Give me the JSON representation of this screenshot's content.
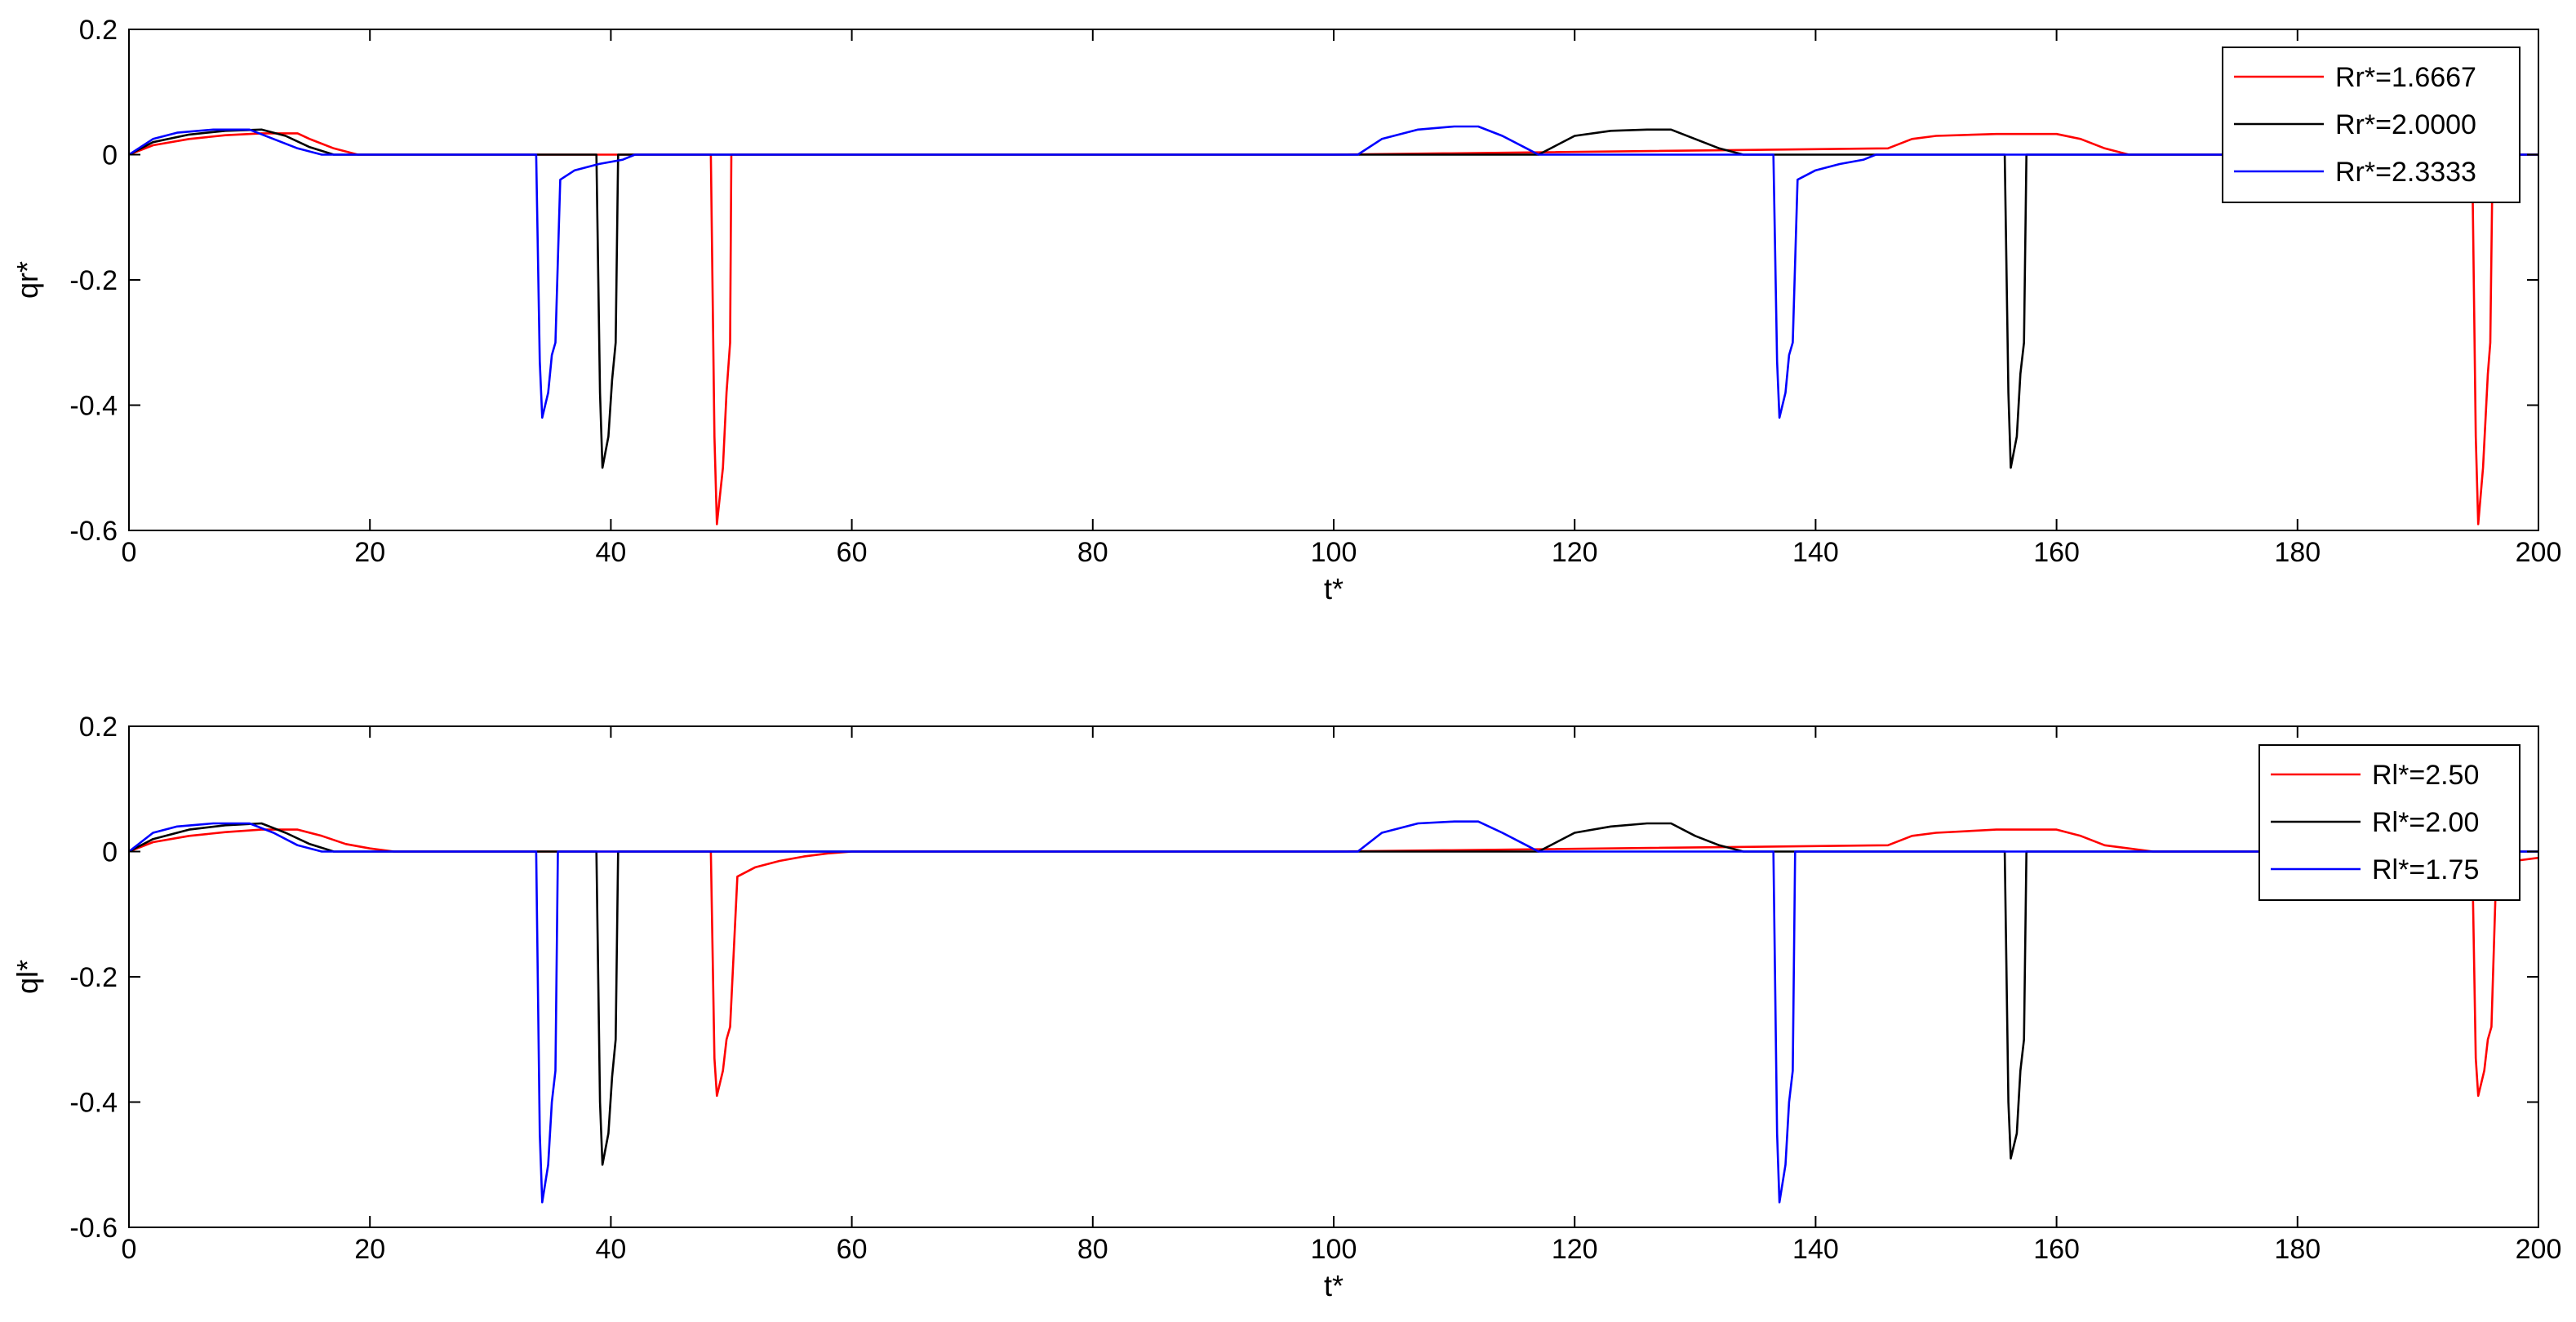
{
  "chart_data": [
    {
      "type": "line",
      "xlabel": "t*",
      "ylabel": "qr*",
      "xlim": [
        0,
        200
      ],
      "ylim": [
        -0.6,
        0.2
      ],
      "xticks": [
        "0",
        "20",
        "40",
        "60",
        "80",
        "100",
        "120",
        "140",
        "160",
        "180",
        "200"
      ],
      "yticks": [
        "0.2",
        "0",
        "-0.2",
        "-0.4",
        "-0.6"
      ],
      "grid": false,
      "legend_position": "top-right",
      "series": [
        {
          "name": "Rr*=1.6667",
          "color": "#ff0000",
          "x": [
            0,
            2,
            5,
            8,
            11,
            14,
            15,
            17,
            19,
            48.3,
            48.6,
            48.8,
            49.3,
            49.6,
            49.9,
            50,
            51,
            60,
            100,
            146,
            148,
            150,
            155,
            160,
            162,
            164,
            166,
            194.5,
            194.8,
            195,
            195.4,
            195.8,
            196,
            196.2,
            200
          ],
          "y": [
            0,
            0.015,
            0.025,
            0.031,
            0.034,
            0.034,
            0.025,
            0.01,
            0,
            0,
            -0.45,
            -0.59,
            -0.5,
            -0.38,
            -0.3,
            0,
            0,
            0,
            0,
            0.01,
            0.025,
            0.03,
            0.033,
            0.033,
            0.025,
            0.01,
            0,
            0,
            -0.45,
            -0.59,
            -0.5,
            -0.35,
            -0.3,
            0,
            0
          ]
        },
        {
          "name": "Rr*=2.0000",
          "color": "#000000",
          "x": [
            0,
            2,
            5,
            8,
            11,
            13,
            15,
            17,
            38.8,
            39.1,
            39.3,
            39.8,
            40.1,
            40.4,
            40.6,
            42,
            60,
            100,
            117,
            120,
            123,
            126,
            128,
            130,
            132,
            134,
            155.7,
            156,
            156.2,
            156.7,
            157,
            157.3,
            157.5,
            160,
            200
          ],
          "y": [
            0,
            0.02,
            0.032,
            0.038,
            0.04,
            0.03,
            0.012,
            0,
            0,
            -0.38,
            -0.5,
            -0.45,
            -0.36,
            -0.3,
            0,
            0,
            0,
            0,
            0,
            0.03,
            0.038,
            0.04,
            0.04,
            0.025,
            0.01,
            0,
            0,
            -0.38,
            -0.5,
            -0.45,
            -0.35,
            -0.3,
            0,
            0,
            0
          ]
        },
        {
          "name": "Rr*=2.3333",
          "color": "#0000ff",
          "x": [
            0,
            2,
            4,
            7,
            10,
            12,
            14,
            16,
            33.8,
            34.1,
            34.3,
            34.8,
            35.1,
            35.4,
            35.8,
            37,
            39,
            41,
            42,
            60,
            100,
            102,
            104,
            107,
            110,
            112,
            114,
            116,
            117,
            136.5,
            136.8,
            137,
            137.5,
            137.8,
            138.1,
            138.5,
            140,
            142,
            144,
            145,
            200
          ],
          "y": [
            0,
            0.025,
            0.035,
            0.04,
            0.04,
            0.025,
            0.01,
            0,
            0,
            -0.33,
            -0.42,
            -0.38,
            -0.32,
            -0.3,
            -0.04,
            -0.025,
            -0.015,
            -0.008,
            0,
            0,
            0,
            0,
            0.025,
            0.04,
            0.045,
            0.045,
            0.03,
            0.01,
            0,
            0,
            -0.33,
            -0.42,
            -0.38,
            -0.32,
            -0.3,
            -0.04,
            -0.025,
            -0.015,
            -0.008,
            0,
            0
          ]
        }
      ]
    },
    {
      "type": "line",
      "xlabel": "t*",
      "ylabel": "ql*",
      "xlim": [
        0,
        200
      ],
      "ylim": [
        -0.6,
        0.2
      ],
      "xticks": [
        "0",
        "20",
        "40",
        "60",
        "80",
        "100",
        "120",
        "140",
        "160",
        "180",
        "200"
      ],
      "yticks": [
        "0.2",
        "0",
        "-0.2",
        "-0.4",
        "-0.6"
      ],
      "grid": false,
      "legend_position": "top-right",
      "series": [
        {
          "name": "Rl*=2.50",
          "color": "#ff0000",
          "x": [
            0,
            2,
            5,
            8,
            11,
            14,
            16,
            18,
            20,
            22,
            48.3,
            48.6,
            48.8,
            49.3,
            49.6,
            49.9,
            50.5,
            52,
            54,
            56,
            58,
            60,
            100,
            146,
            148,
            150,
            155,
            160,
            162,
            164,
            166,
            168,
            194.5,
            194.8,
            195,
            195.5,
            195.8,
            196.1,
            196.5,
            198,
            200
          ],
          "y": [
            0,
            0.015,
            0.025,
            0.031,
            0.035,
            0.035,
            0.025,
            0.012,
            0.005,
            0,
            0,
            -0.33,
            -0.39,
            -0.35,
            -0.3,
            -0.28,
            -0.04,
            -0.025,
            -0.015,
            -0.008,
            -0.003,
            0,
            0,
            0.01,
            0.025,
            0.03,
            0.035,
            0.035,
            0.025,
            0.01,
            0.005,
            0,
            0,
            -0.33,
            -0.39,
            -0.35,
            -0.3,
            -0.28,
            -0.03,
            -0.015,
            -0.01
          ]
        },
        {
          "name": "Rl*=2.00",
          "color": "#000000",
          "x": [
            0,
            2,
            5,
            8,
            11,
            13,
            15,
            17,
            38.8,
            39.1,
            39.3,
            39.8,
            40.1,
            40.4,
            40.6,
            42,
            60,
            100,
            117,
            120,
            123,
            126,
            128,
            130,
            132,
            134,
            155.7,
            156,
            156.2,
            156.7,
            157,
            157.3,
            157.5,
            160,
            200
          ],
          "y": [
            0,
            0.02,
            0.035,
            0.042,
            0.045,
            0.03,
            0.012,
            0,
            0,
            -0.4,
            -0.5,
            -0.45,
            -0.36,
            -0.3,
            0,
            0,
            0,
            0,
            0,
            0.03,
            0.04,
            0.045,
            0.045,
            0.025,
            0.01,
            0,
            0,
            -0.4,
            -0.49,
            -0.45,
            -0.35,
            -0.3,
            0,
            0,
            0
          ]
        },
        {
          "name": "Rl*=1.75",
          "color": "#0000ff",
          "x": [
            0,
            2,
            4,
            7,
            10,
            12,
            14,
            16,
            33.8,
            34.1,
            34.3,
            34.8,
            35.1,
            35.4,
            35.6,
            37,
            60,
            100,
            102,
            104,
            107,
            110,
            112,
            114,
            116,
            117,
            136.5,
            136.8,
            137,
            137.5,
            137.8,
            138.1,
            138.3,
            140,
            200
          ],
          "y": [
            0,
            0.03,
            0.04,
            0.045,
            0.045,
            0.03,
            0.01,
            0,
            0,
            -0.45,
            -0.56,
            -0.5,
            -0.4,
            -0.35,
            0,
            0,
            0,
            0,
            0,
            0.03,
            0.045,
            0.048,
            0.048,
            0.03,
            0.01,
            0,
            0,
            -0.45,
            -0.56,
            -0.5,
            -0.4,
            -0.35,
            0,
            0,
            0
          ]
        }
      ]
    }
  ]
}
